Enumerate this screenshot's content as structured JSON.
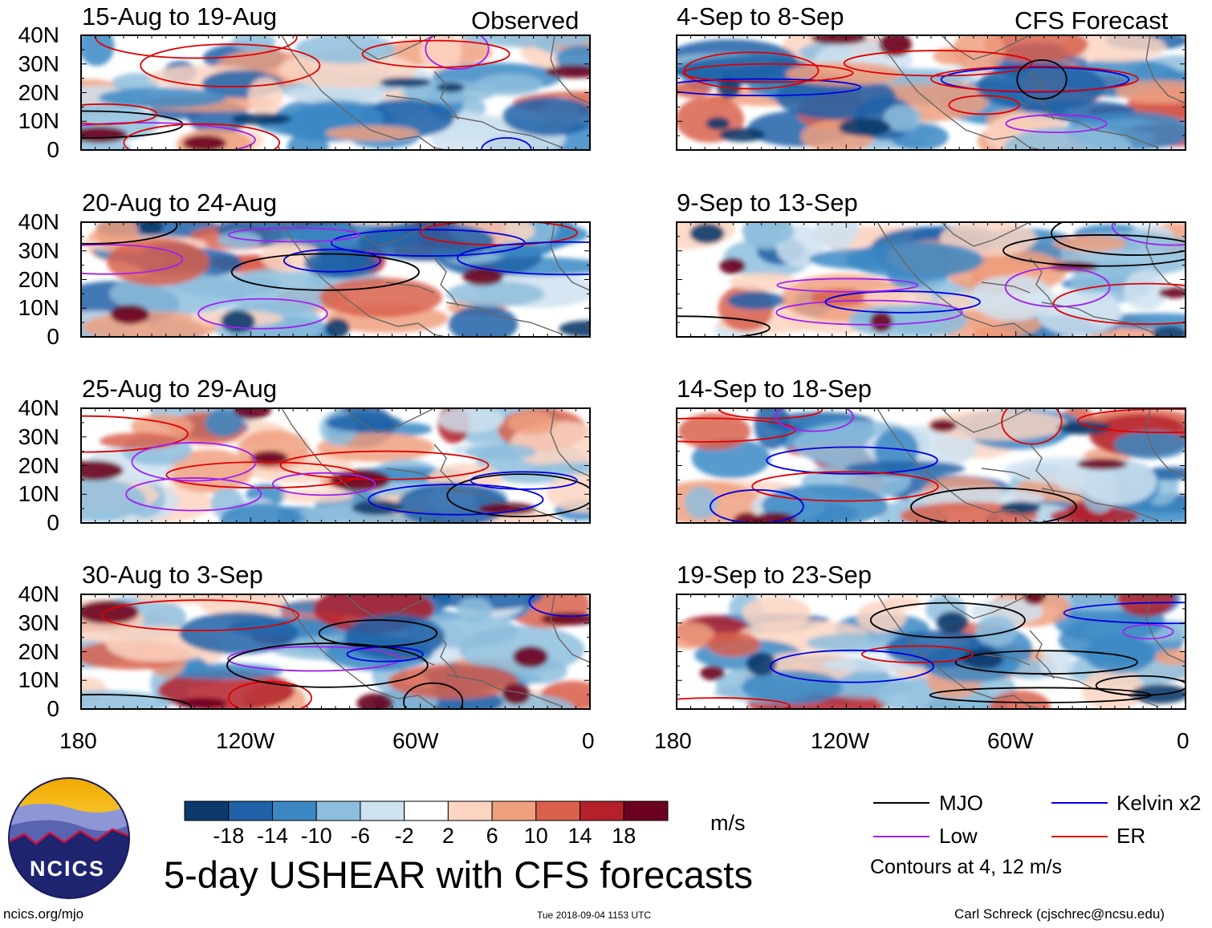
{
  "chart_data": {
    "type": "heatmap",
    "title": "5-day USHEAR with CFS forecasts",
    "units": "m/s",
    "x_ticks": [
      "180",
      "120W",
      "60W",
      "0"
    ],
    "y_ticks": [
      "40N",
      "30N",
      "20N",
      "10N",
      "0"
    ],
    "x_range": [
      -180,
      0
    ],
    "y_range": [
      0,
      40
    ],
    "column_labels": [
      "Observed",
      "CFS Forecast"
    ],
    "panels": [
      {
        "title": "15-Aug to 19-Aug",
        "source": "Observed"
      },
      {
        "title": "20-Aug to 24-Aug",
        "source": "Observed"
      },
      {
        "title": "25-Aug to 29-Aug",
        "source": "Observed"
      },
      {
        "title": "30-Aug to 3-Sep",
        "source": "Observed"
      },
      {
        "title": "4-Sep to 8-Sep",
        "source": "CFS Forecast"
      },
      {
        "title": "9-Sep to 13-Sep",
        "source": "CFS Forecast"
      },
      {
        "title": "14-Sep to 18-Sep",
        "source": "CFS Forecast"
      },
      {
        "title": "19-Sep to 23-Sep",
        "source": "CFS Forecast"
      }
    ],
    "colorbar": {
      "labels": [
        "-18",
        "-14",
        "-10",
        "-6",
        "-2",
        "2",
        "6",
        "10",
        "14",
        "18"
      ],
      "colors": [
        "#0d3a6c",
        "#1f62a8",
        "#3b88c4",
        "#8ebedd",
        "#cfe2f0",
        "#ffffff",
        "#fbd5c2",
        "#f0a07f",
        "#d9604d",
        "#b4212b",
        "#6b0020"
      ]
    },
    "legend": {
      "entries": [
        {
          "label": "MJO",
          "color": "#000000"
        },
        {
          "label": "Kelvin x2",
          "color": "#0000e0"
        },
        {
          "label": "Low",
          "color": "#a020f0"
        },
        {
          "label": "ER",
          "color": "#e00000"
        }
      ],
      "note": "Contours at 4, 12 m/s"
    }
  },
  "footer": {
    "logo_text": "NCICS",
    "url": "ncics.org/mjo",
    "timestamp": "Tue 2018-09-04 1153 UTC",
    "author": "Carl Schreck (cjschrec@ncsu.edu)"
  }
}
